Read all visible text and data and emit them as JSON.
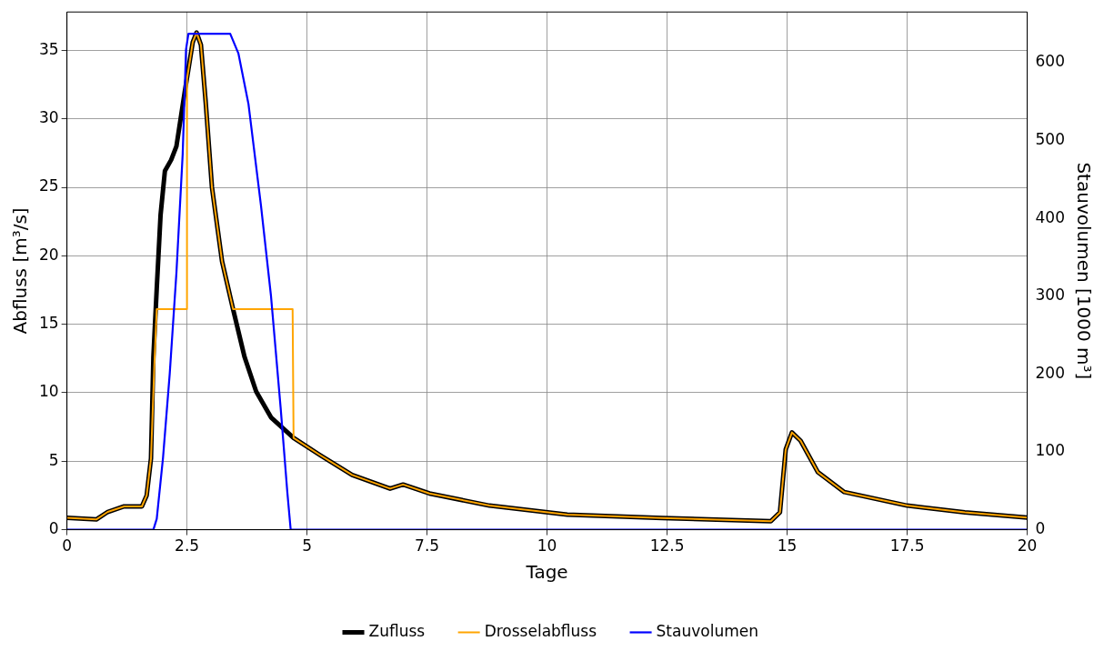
{
  "chart_data": {
    "type": "line",
    "xlabel": "Tage",
    "ylabel": "Abfluss [m³/s]",
    "y2label": "Stauvolumen [1000 m³]",
    "xlim": [
      0,
      20
    ],
    "xticks": [
      0,
      2.5,
      5,
      7.5,
      10,
      12.5,
      15,
      17.5,
      20
    ],
    "ylim": [
      0,
      37.8
    ],
    "yticks": [
      0,
      5,
      10,
      15,
      20,
      25,
      30,
      35
    ],
    "y2lim": [
      0,
      665
    ],
    "y2ticks": [
      0,
      100,
      200,
      300,
      400,
      500,
      600
    ],
    "grid": true,
    "legend": "bottom",
    "marker": "none",
    "line_style": "solid",
    "series": [
      {
        "name": "Zufluss",
        "color": "#000000",
        "x": [
          0,
          0.61,
          0.85,
          1.19,
          1.56,
          1.66,
          1.75,
          1.8,
          1.87,
          1.95,
          2.04,
          2.17,
          2.28,
          2.45,
          2.62,
          2.7,
          2.79,
          2.89,
          3.02,
          3.23,
          3.46,
          3.7,
          3.94,
          4.25,
          4.72,
          5.27,
          5.94,
          6.73,
          7.0,
          7.55,
          8.8,
          10.42,
          12.4,
          14.66,
          14.85,
          14.97,
          15.1,
          15.28,
          15.64,
          16.19,
          17.5,
          18.7,
          20
        ],
        "values": [
          0.87,
          0.75,
          1.3,
          1.7,
          1.7,
          2.5,
          5.2,
          12.6,
          17.6,
          23,
          26.2,
          27,
          28,
          31.9,
          35.6,
          36.3,
          35.4,
          31.2,
          25,
          19.6,
          16.1,
          12.6,
          10.1,
          8.2,
          6.7,
          5.45,
          4,
          3,
          3.3,
          2.65,
          1.76,
          1.1,
          0.85,
          0.62,
          1.27,
          5.85,
          7.1,
          6.5,
          4.2,
          2.75,
          1.76,
          1.27,
          0.88
        ]
      },
      {
        "name": "Drosselabfluss",
        "color": "#ffa500",
        "x": [
          0,
          0.61,
          0.85,
          1.19,
          1.56,
          1.66,
          1.75,
          1.82,
          1.87,
          2.5,
          2.5,
          2.62,
          2.7,
          2.79,
          2.89,
          3.02,
          3.23,
          3.46,
          4.7,
          4.72,
          5.27,
          5.94,
          6.73,
          7.0,
          7.55,
          8.8,
          10.42,
          12.4,
          14.66,
          14.85,
          14.97,
          15.1,
          15.28,
          15.64,
          16.19,
          17.5,
          18.7,
          20
        ],
        "values": [
          0.87,
          0.75,
          1.3,
          1.7,
          1.7,
          2.5,
          5.2,
          12,
          16.1,
          16.1,
          32.9,
          35.6,
          36.3,
          35.4,
          31.2,
          25,
          19.6,
          16.1,
          16.1,
          6.7,
          5.45,
          4,
          3,
          3.3,
          2.65,
          1.76,
          1.1,
          0.85,
          0.62,
          1.27,
          5.85,
          7.1,
          6.5,
          4.2,
          2.75,
          1.76,
          1.27,
          0.88
        ]
      },
      {
        "name": "Stauvolumen",
        "color": "#0000ff",
        "axis": "y2",
        "x": [
          0,
          1.8,
          1.87,
          2.0,
          2.14,
          2.28,
          2.41,
          2.48,
          2.53,
          3.4,
          3.57,
          3.78,
          4.04,
          4.25,
          4.45,
          4.59,
          4.66,
          20
        ],
        "values": [
          0,
          0,
          14,
          92,
          200,
          330,
          482,
          617,
          637,
          637,
          612,
          547,
          417,
          300,
          157,
          48,
          0,
          0
        ]
      }
    ]
  }
}
